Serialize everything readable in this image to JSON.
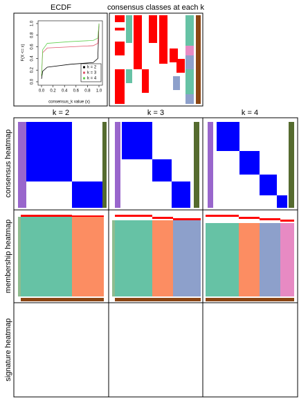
{
  "chart_data": {
    "type": "line",
    "title": "ECDF",
    "xlabel": "consensus_k value (x)",
    "ylabel": "F(X <= x)",
    "x": [
      0,
      0.02,
      0.1,
      0.5,
      0.9,
      0.98,
      1
    ],
    "series": [
      {
        "name": "k = 2",
        "color": "#000000",
        "values": [
          0.05,
          0.18,
          0.25,
          0.3,
          0.33,
          0.4,
          1
        ]
      },
      {
        "name": "k = 3",
        "color": "#DF536B",
        "values": [
          0.1,
          0.5,
          0.58,
          0.6,
          0.62,
          0.66,
          1
        ]
      },
      {
        "name": "k = 4",
        "color": "#61D04F",
        "values": [
          0.1,
          0.55,
          0.66,
          0.69,
          0.71,
          0.75,
          1
        ]
      }
    ],
    "xlim": [
      0,
      1
    ],
    "ylim": [
      0,
      1
    ],
    "xticks": [
      {
        "value": 0,
        "label": "0.0"
      },
      0.2,
      0.4,
      0.6,
      0.8,
      {
        "value": 1,
        "label": "1.0"
      }
    ],
    "yticks": [
      {
        "value": 0,
        "label": "0.0"
      },
      0.2,
      0.4,
      0.6,
      0.8,
      {
        "value": 1,
        "label": "1.0"
      }
    ],
    "legend": "bottom-right"
  },
  "panels": {
    "classes_title": "consensus classes at each k",
    "columns": [
      "k = 2",
      "k = 3",
      "k = 4"
    ],
    "rows": [
      "consensus heatmap",
      "membership heatmap",
      "signature heatmap"
    ]
  }
}
